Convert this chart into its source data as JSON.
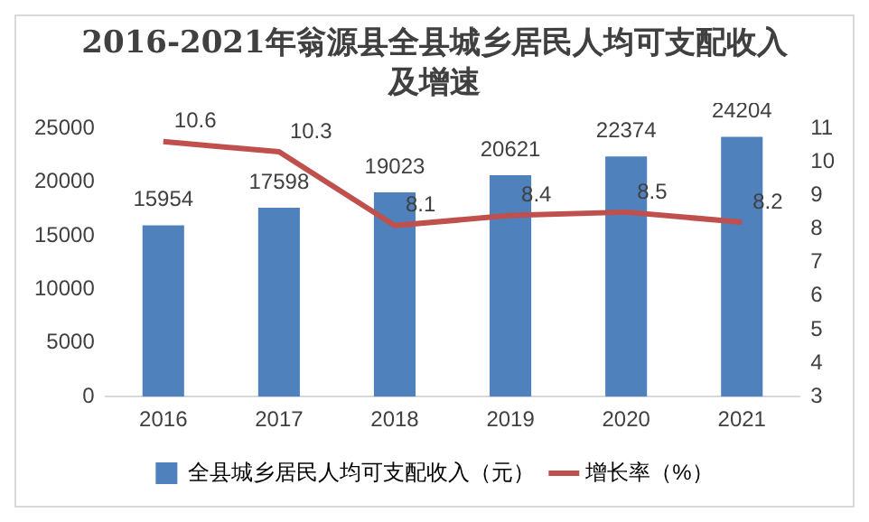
{
  "chart_data": {
    "type": "bar",
    "title": "2016-2021年翁源县全县城乡居民人均可支配收入及增速",
    "categories": [
      "2016",
      "2017",
      "2018",
      "2019",
      "2020",
      "2021"
    ],
    "series": [
      {
        "name": "全县城乡居民人均可支配收入（元）",
        "color": "#4f81bd",
        "values": [
          15954,
          17598,
          19023,
          20621,
          22374,
          24204
        ]
      },
      {
        "name": "增长率（%）",
        "type": "line",
        "axis": "y2",
        "color": "#c0504d",
        "values": [
          10.6,
          10.3,
          8.1,
          8.4,
          8.5,
          8.2
        ]
      }
    ],
    "ylim": [
      0,
      25000
    ],
    "yticks": [
      0,
      5000,
      10000,
      15000,
      20000,
      25000
    ],
    "y2lim": [
      3,
      11
    ],
    "y2ticks": [
      3,
      4,
      5,
      6,
      7,
      8,
      9,
      10,
      11
    ],
    "grid": false,
    "legend": "bottom",
    "marker": "none",
    "line_style": "solid",
    "data_labels": true
  }
}
